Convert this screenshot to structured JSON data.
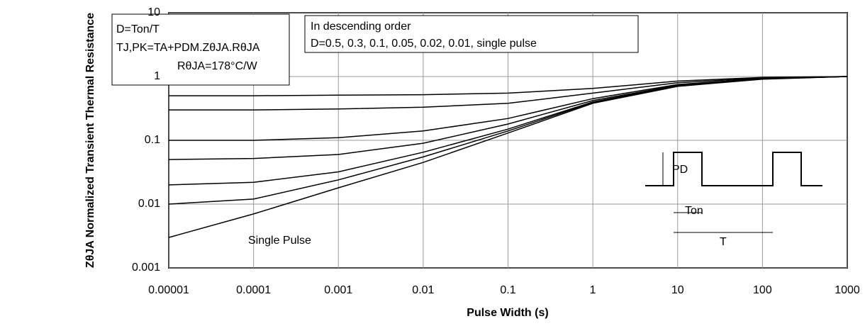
{
  "chart_data": {
    "type": "line",
    "x_label": "Pulse Width (s)",
    "y_label": "ZθJA Normalized Transient Thermal Resistance",
    "log_x": true,
    "log_y": true,
    "grid": true,
    "xlim": [
      1e-05,
      1000
    ],
    "xticks": [
      {
        "value": 1e-05,
        "label": "0.00001"
      },
      0.0001,
      0.001,
      0.01,
      0.1,
      1,
      10,
      100,
      1000
    ],
    "ylim": [
      0.001,
      10
    ],
    "yticks": [
      0.001,
      0.01,
      0.1,
      1,
      10
    ],
    "x": [
      1e-05,
      0.0001,
      0.001,
      0.01,
      0.1,
      1,
      10,
      100,
      1000
    ],
    "series": [
      {
        "color": "#000000",
        "values": [
          0.5,
          0.5,
          0.51,
          0.52,
          0.55,
          0.65,
          0.85,
          0.97,
          1
        ]
      },
      {
        "color": "#000000",
        "values": [
          0.3,
          0.3,
          0.31,
          0.33,
          0.38,
          0.55,
          0.8,
          0.95,
          1
        ]
      },
      {
        "color": "#000000",
        "values": [
          0.1,
          0.1,
          0.11,
          0.14,
          0.22,
          0.45,
          0.75,
          0.93,
          1
        ]
      },
      {
        "color": "#000000",
        "values": [
          0.05,
          0.052,
          0.06,
          0.09,
          0.18,
          0.42,
          0.73,
          0.92,
          1
        ]
      },
      {
        "color": "#000000",
        "values": [
          0.02,
          0.022,
          0.032,
          0.065,
          0.15,
          0.4,
          0.72,
          0.92,
          1
        ]
      },
      {
        "color": "#000000",
        "values": [
          0.01,
          0.012,
          0.024,
          0.055,
          0.14,
          0.39,
          0.71,
          0.92,
          1
        ]
      },
      {
        "color": "#000000",
        "values": [
          0.003,
          0.007,
          0.018,
          0.045,
          0.13,
          0.38,
          0.7,
          0.91,
          1
        ]
      }
    ],
    "annotations": {
      "duty": "D=Ton/T",
      "formula": "TJ,PK=TA+PDM.ZθJA.RθJA",
      "rthja": "RθJA=178°C/W",
      "order": "In descending order",
      "list": "D=0.5, 0.3, 0.1, 0.05, 0.02, 0.01, single pulse",
      "single": "Single Pulse",
      "pd": "PD",
      "ton": "Ton",
      "period": "T"
    }
  }
}
